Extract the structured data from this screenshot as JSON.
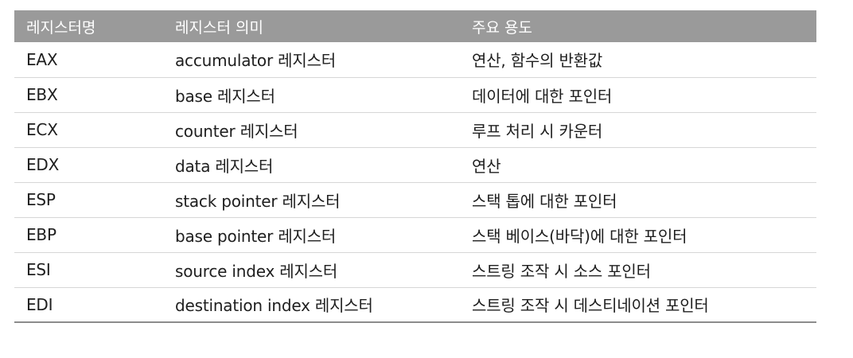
{
  "table": {
    "headers": [
      "레지스터명",
      "레지스터 의미",
      "주요 용도"
    ],
    "rows": [
      [
        "EAX",
        "accumulator 레지스터",
        "연산, 함수의 반환값"
      ],
      [
        "EBX",
        "base 레지스터",
        "데이터에 대한 포인터"
      ],
      [
        "ECX",
        "counter 레지스터",
        "루프 처리 시 카운터"
      ],
      [
        "EDX",
        "data 레지스터",
        "연산"
      ],
      [
        "ESP",
        "stack pointer 레지스터",
        "스택 톱에 대한 포인터"
      ],
      [
        "EBP",
        "base pointer 레지스터",
        "스택 베이스(바닥)에 대한 포인터"
      ],
      [
        "ESI",
        "source index 레지스터",
        "스트링 조작 시 소스 포인터"
      ],
      [
        "EDI",
        "destination index 레지스터",
        "스트링 조작 시 데스티네이션 포인터"
      ]
    ]
  }
}
